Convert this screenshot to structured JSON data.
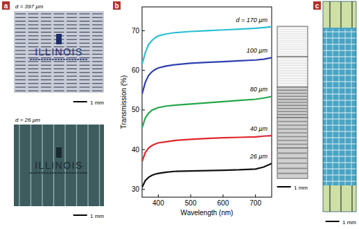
{
  "panel_a": {
    "label": "a",
    "images": [
      {
        "caption": "d = 397 µm",
        "logo": "ILLINOIS",
        "scale_bar": "1 mm"
      },
      {
        "caption": "d = 26 µm",
        "logo": "ILLINOIS",
        "scale_bar": "1 mm"
      }
    ]
  },
  "chart_data": {
    "type": "line",
    "label": "b",
    "x_label": "Wavelength (nm)",
    "y_label": "Transmission (%)",
    "x": [
      350,
      360,
      370,
      380,
      390,
      400,
      425,
      450,
      500,
      550,
      600,
      650,
      700,
      725,
      750
    ],
    "xlim": [
      350,
      750
    ],
    "xticks": [
      400,
      500,
      600,
      700
    ],
    "ylim": [
      28,
      76
    ],
    "yticks": [
      30,
      40,
      50,
      60,
      70
    ],
    "series": [
      {
        "name": "d = 170 µm",
        "color": "#2bbfd2",
        "values": [
          61.5,
          64.5,
          66.5,
          67.5,
          68.2,
          68.7,
          69.2,
          69.5,
          69.8,
          70.0,
          70.2,
          70.4,
          70.6,
          70.8,
          71.0
        ]
      },
      {
        "name": "100 µm",
        "color": "#2d3fae",
        "values": [
          54,
          57,
          58.7,
          59.6,
          60.2,
          60.6,
          61.1,
          61.4,
          61.8,
          62.0,
          62.2,
          62.4,
          62.6,
          62.8,
          63.2
        ]
      },
      {
        "name": "80 µm",
        "color": "#23a64a",
        "values": [
          45.5,
          48,
          49.2,
          49.9,
          50.3,
          50.6,
          51.0,
          51.2,
          51.5,
          51.8,
          52.1,
          52.4,
          52.7,
          53.0,
          53.4
        ]
      },
      {
        "name": "40 µm",
        "color": "#e0262a",
        "values": [
          37,
          39.3,
          40.4,
          41.0,
          41.4,
          41.7,
          42.0,
          42.3,
          42.6,
          42.8,
          43.0,
          43.1,
          43.2,
          43.4,
          43.5
        ]
      },
      {
        "name": "26 µm",
        "color": "#111111",
        "values": [
          30.5,
          32.2,
          33.0,
          33.5,
          33.8,
          34.0,
          34.3,
          34.5,
          34.6,
          34.7,
          34.8,
          34.9,
          35.1,
          35.6,
          36.5
        ]
      }
    ]
  },
  "panel_b_inset": {
    "scale_bar": "1 mm"
  },
  "panel_c": {
    "label": "c",
    "scale_bar": "1 mm"
  }
}
